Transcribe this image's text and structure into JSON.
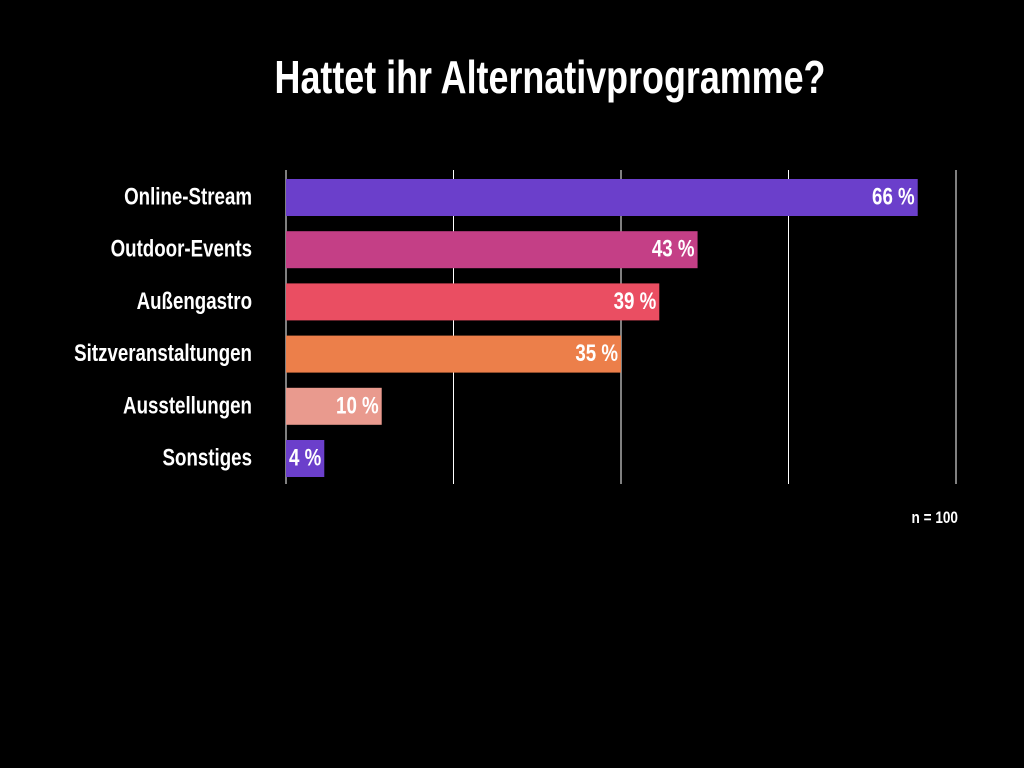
{
  "chart_data": {
    "type": "bar",
    "orientation": "horizontal",
    "title": "Hattet ihr Alternativprogramme?",
    "categories": [
      "Online-Stream",
      "Outdoor-Events",
      "Außengastro",
      "Sitzveranstaltungen",
      "Ausstellungen",
      "Sonstiges"
    ],
    "values": [
      66,
      43,
      39,
      35,
      10,
      4
    ],
    "value_labels": [
      "66 %",
      "43 %",
      "39 %",
      "35 %",
      "10 %",
      "4 %"
    ],
    "colors": [
      "#6B3FCB",
      "#C43F86",
      "#EA4E62",
      "#EC7F4A",
      "#E99A8E",
      "#6B3FCB"
    ],
    "xlim": [
      0,
      70
    ],
    "grid": true,
    "note": "n = 100"
  }
}
